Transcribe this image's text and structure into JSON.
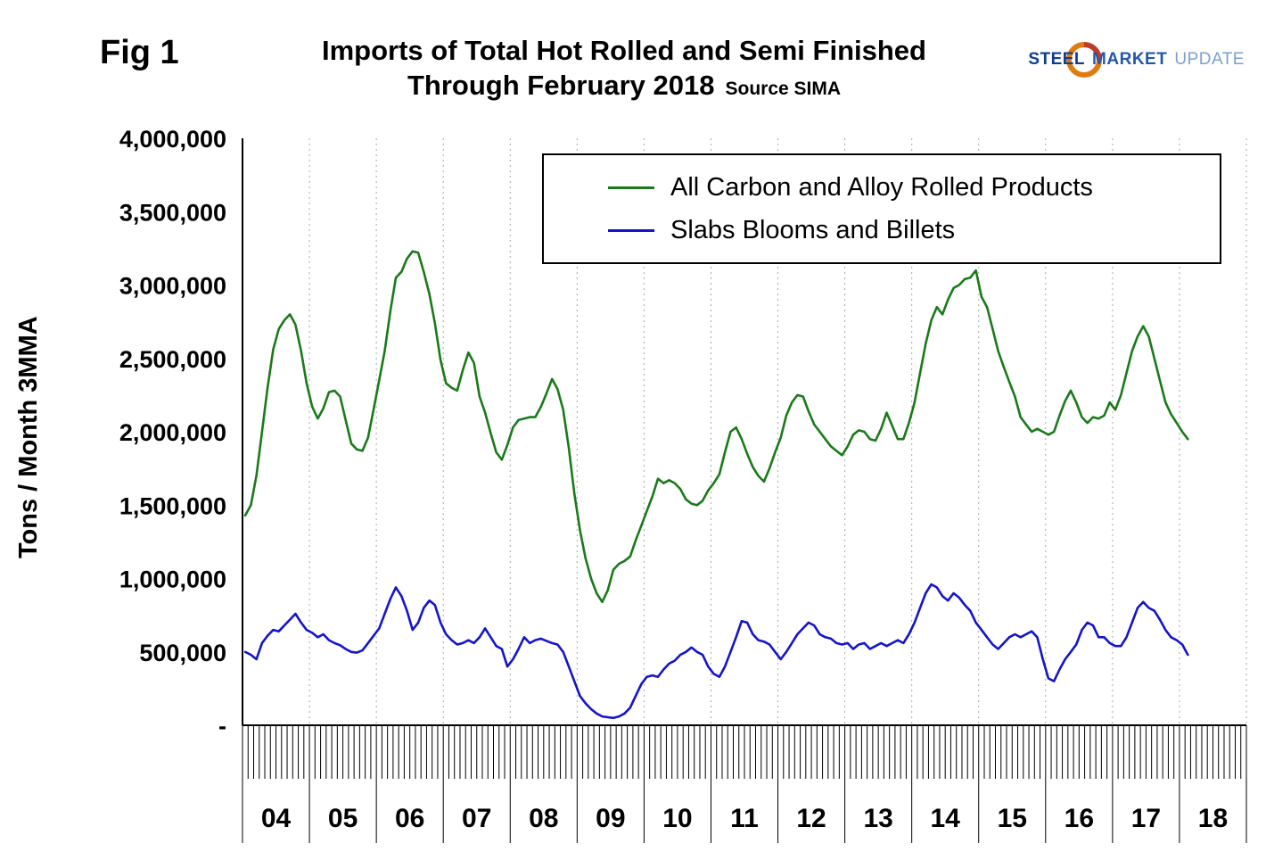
{
  "figure_label": "Fig 1",
  "title_line1": "Imports of Total Hot Rolled and Semi Finished",
  "title_line2": "Through February 2018",
  "source_label": "Source SIMA",
  "logo": {
    "steel": "STEEL",
    "market": "MARKET",
    "update": "UPDATE",
    "swirl_color_primary": "#e07b10",
    "swirl_color_secondary": "#c0392b",
    "text_color": "#0f3d8c"
  },
  "ylabel": "Tons / Month 3MMA",
  "chart_data": {
    "type": "line",
    "title": "Imports of Total Hot Rolled and Semi Finished Through February 2018",
    "subtitle": "Source SIMA",
    "xlabel": "",
    "ylabel": "Tons / Month 3MMA",
    "ylim": [
      0,
      4000000
    ],
    "ytick_interval": 500000,
    "ytick_labels": [
      "-",
      "500,000",
      "1,000,000",
      "1,500,000",
      "2,000,000",
      "2,500,000",
      "3,000,000",
      "3,500,000",
      "4,000,000"
    ],
    "year_labels": [
      "04",
      "05",
      "06",
      "07",
      "08",
      "09",
      "10",
      "11",
      "12",
      "13",
      "14",
      "15",
      "16",
      "17",
      "18"
    ],
    "x_start": "2004-01",
    "x_end": "2018-02",
    "axis_total_months": 180,
    "grid": "vertical-dotted-at-year-boundaries",
    "legend_position": "top-center-inside",
    "series": [
      {
        "name": "All Carbon and Alloy Rolled Products",
        "color": "#1a7a1a",
        "values": [
          1430000,
          1500000,
          1700000,
          2000000,
          2300000,
          2560000,
          2700000,
          2760000,
          2800000,
          2730000,
          2550000,
          2330000,
          2170000,
          2090000,
          2160000,
          2270000,
          2280000,
          2240000,
          2080000,
          1920000,
          1880000,
          1870000,
          1960000,
          2150000,
          2350000,
          2550000,
          2820000,
          3050000,
          3090000,
          3180000,
          3230000,
          3220000,
          3090000,
          2940000,
          2740000,
          2490000,
          2330000,
          2300000,
          2280000,
          2420000,
          2540000,
          2470000,
          2240000,
          2130000,
          1990000,
          1860000,
          1810000,
          1910000,
          2030000,
          2080000,
          2090000,
          2100000,
          2100000,
          2170000,
          2260000,
          2360000,
          2290000,
          2150000,
          1890000,
          1580000,
          1330000,
          1140000,
          1000000,
          900000,
          840000,
          920000,
          1060000,
          1100000,
          1120000,
          1150000,
          1260000,
          1360000,
          1460000,
          1560000,
          1680000,
          1650000,
          1670000,
          1650000,
          1610000,
          1540000,
          1510000,
          1500000,
          1530000,
          1600000,
          1650000,
          1710000,
          1860000,
          2000000,
          2030000,
          1950000,
          1850000,
          1760000,
          1700000,
          1660000,
          1750000,
          1860000,
          1960000,
          2110000,
          2200000,
          2250000,
          2240000,
          2140000,
          2050000,
          2000000,
          1950000,
          1900000,
          1870000,
          1840000,
          1900000,
          1980000,
          2010000,
          2000000,
          1950000,
          1940000,
          2020000,
          2130000,
          2040000,
          1950000,
          1950000,
          2060000,
          2200000,
          2400000,
          2600000,
          2760000,
          2850000,
          2800000,
          2900000,
          2980000,
          3000000,
          3040000,
          3050000,
          3100000,
          2920000,
          2850000,
          2700000,
          2550000,
          2440000,
          2340000,
          2240000,
          2100000,
          2050000,
          2000000,
          2020000,
          2000000,
          1980000,
          2000000,
          2110000,
          2210000,
          2280000,
          2200000,
          2100000,
          2060000,
          2100000,
          2090000,
          2110000,
          2200000,
          2150000,
          2250000,
          2400000,
          2550000,
          2650000,
          2720000,
          2650000,
          2500000,
          2350000,
          2200000,
          2120000,
          2060000,
          2000000,
          1950000
        ]
      },
      {
        "name": "Slabs Blooms and Billets",
        "color": "#1414cc",
        "values": [
          500000,
          480000,
          450000,
          560000,
          610000,
          650000,
          640000,
          680000,
          720000,
          760000,
          700000,
          650000,
          630000,
          600000,
          620000,
          580000,
          560000,
          545000,
          520000,
          500000,
          495000,
          510000,
          560000,
          610000,
          660000,
          760000,
          860000,
          940000,
          880000,
          780000,
          650000,
          700000,
          800000,
          850000,
          820000,
          700000,
          620000,
          580000,
          550000,
          560000,
          580000,
          560000,
          600000,
          660000,
          600000,
          540000,
          520000,
          400000,
          450000,
          520000,
          600000,
          560000,
          580000,
          590000,
          575000,
          560000,
          550000,
          500000,
          400000,
          300000,
          200000,
          150000,
          110000,
          80000,
          60000,
          55000,
          50000,
          60000,
          80000,
          120000,
          200000,
          280000,
          330000,
          340000,
          330000,
          380000,
          420000,
          440000,
          480000,
          500000,
          530000,
          500000,
          480000,
          400000,
          350000,
          330000,
          400000,
          500000,
          600000,
          710000,
          700000,
          620000,
          580000,
          570000,
          550000,
          500000,
          450000,
          500000,
          560000,
          620000,
          660000,
          700000,
          680000,
          620000,
          600000,
          590000,
          560000,
          550000,
          560000,
          520000,
          550000,
          560000,
          520000,
          540000,
          560000,
          540000,
          560000,
          580000,
          560000,
          620000,
          700000,
          800000,
          900000,
          960000,
          940000,
          880000,
          850000,
          900000,
          870000,
          820000,
          780000,
          700000,
          650000,
          600000,
          550000,
          520000,
          560000,
          600000,
          620000,
          600000,
          620000,
          640000,
          600000,
          450000,
          320000,
          300000,
          380000,
          450000,
          500000,
          550000,
          650000,
          700000,
          680000,
          600000,
          600000,
          560000,
          540000,
          540000,
          600000,
          700000,
          800000,
          840000,
          800000,
          780000,
          720000,
          650000,
          600000,
          580000,
          550000,
          480000
        ]
      }
    ]
  }
}
